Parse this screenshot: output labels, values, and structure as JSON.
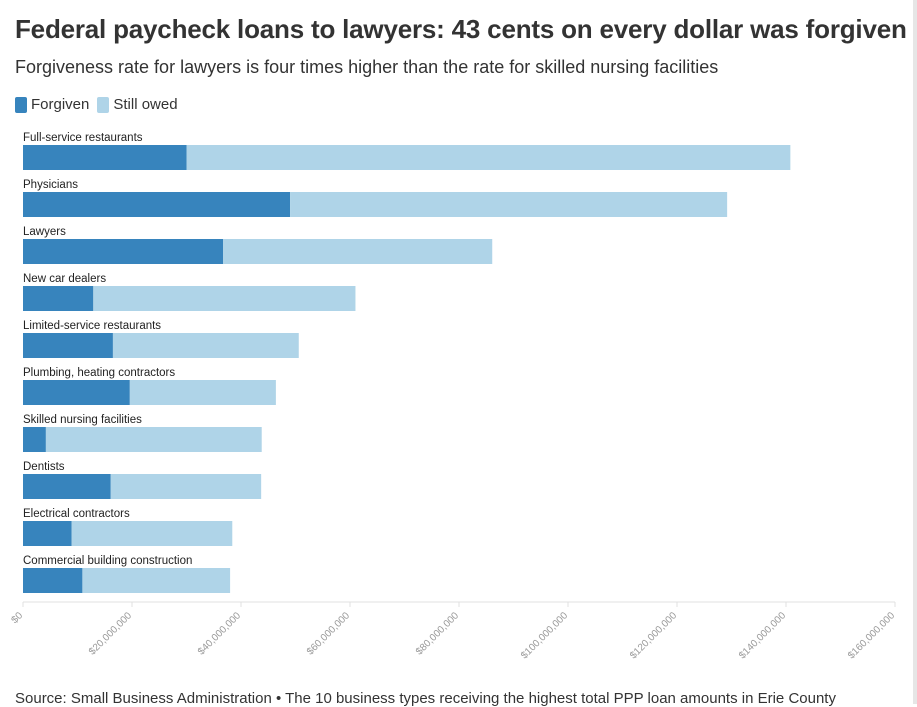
{
  "title": "Federal paycheck loans to lawyers: 43 cents on every dollar was forgiven",
  "subtitle": "Forgiveness rate for lawyers is four times higher than the rate for skilled nursing facilities",
  "colors": {
    "forgiven": "#3784bd",
    "still_owed": "#afd4e8",
    "axis": "#e0e0e0",
    "tick_text": "#9a9a9a"
  },
  "source": "Source: Small Business Administration • The 10 business types receiving the highest total PPP loan amounts in Erie County",
  "chart_data": {
    "type": "bar",
    "orientation": "horizontal",
    "stacked": true,
    "legend": [
      "Forgiven",
      "Still owed"
    ],
    "legend_position": "top-left",
    "categories": [
      "Full-service restaurants",
      "Physicians",
      "Lawyers",
      "New car dealers",
      "Limited-service restaurants",
      "Plumbing, heating contractors",
      "Skilled nursing facilities",
      "Dentists",
      "Electrical contractors",
      "Commercial building construction"
    ],
    "series": [
      {
        "name": "Forgiven",
        "values": [
          30000000,
          49000000,
          36700000,
          12900000,
          16500000,
          19600000,
          4200000,
          16100000,
          8900000,
          10900000
        ]
      },
      {
        "name": "Still owed",
        "values": [
          110800000,
          80200000,
          49400000,
          48100000,
          34100000,
          26800000,
          39600000,
          27600000,
          29500000,
          27100000
        ]
      }
    ],
    "xlim": [
      0,
      160000000
    ],
    "x_ticks": [
      0,
      20000000,
      40000000,
      60000000,
      80000000,
      100000000,
      120000000,
      140000000,
      160000000
    ],
    "x_tick_labels": [
      "$0",
      "$20,000,000",
      "$40,000,000",
      "$60,000,000",
      "$80,000,000",
      "$100,000,000",
      "$120,000,000",
      "$140,000,000",
      "$160,000,000"
    ],
    "grid": false
  }
}
